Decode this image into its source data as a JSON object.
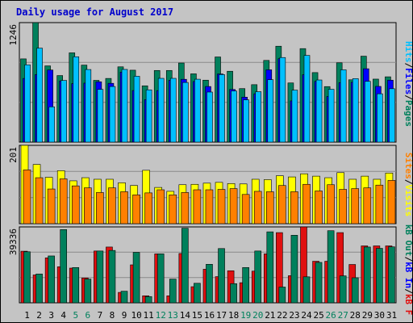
{
  "chart_data": [
    {
      "type": "bar",
      "title": "Daily usage for August 2017",
      "panel": "pages-files-hits",
      "ymax_label": "1246",
      "right_labels": [
        "Pages",
        "Files",
        "Hits"
      ],
      "right_separator": "/",
      "colors": {
        "hits": "#00805c",
        "files": "#0000ff",
        "pages": "#00c0ff"
      },
      "categories": [
        "1",
        "2",
        "3",
        "4",
        "5",
        "6",
        "7",
        "8",
        "9",
        "10",
        "11",
        "12",
        "13",
        "14",
        "15",
        "16",
        "17",
        "18",
        "19",
        "20",
        "21",
        "22",
        "23",
        "24",
        "25",
        "26",
        "27",
        "28",
        "29",
        "30",
        "31"
      ],
      "series": [
        {
          "name": "Hits",
          "key": "hits",
          "values": [
            868,
            1246,
            795,
            694,
            931,
            803,
            644,
            664,
            785,
            750,
            587,
            747,
            747,
            825,
            712,
            646,
            888,
            739,
            558,
            599,
            852,
            1000,
            617,
            975,
            725,
            579,
            827,
            650,
            896,
            657,
            681
          ]
        },
        {
          "name": "Files",
          "key": "files",
          "values": [
            664,
            705,
            752,
            638,
            610,
            615,
            629,
            613,
            730,
            538,
            443,
            537,
            645,
            655,
            632,
            580,
            711,
            549,
            469,
            504,
            754,
            870,
            430,
            703,
            633,
            476,
            620,
            624,
            765,
            581,
            646
          ]
        },
        {
          "name": "Pages",
          "key": "pages",
          "values": [
            806,
            980,
            368,
            643,
            890,
            757,
            550,
            580,
            758,
            687,
            545,
            665,
            665,
            622,
            656,
            522,
            704,
            533,
            441,
            526,
            651,
            882,
            542,
            904,
            648,
            551,
            754,
            662,
            634,
            504,
            557
          ]
        }
      ]
    },
    {
      "type": "bar",
      "panel": "visits-sites",
      "ymax_label": "201",
      "right_labels": [
        "Visits",
        "Sites"
      ],
      "right_separator": "/",
      "colors": {
        "visits": "#ffff00",
        "sites": "#ff8000"
      },
      "categories": [
        "1",
        "2",
        "3",
        "4",
        "5",
        "6",
        "7",
        "8",
        "9",
        "10",
        "11",
        "12",
        "13",
        "14",
        "15",
        "16",
        "17",
        "18",
        "19",
        "20",
        "21",
        "22",
        "23",
        "24",
        "25",
        "26",
        "27",
        "28",
        "29",
        "30",
        "31"
      ],
      "series": [
        {
          "name": "Visits",
          "key": "visits",
          "values": [
            201,
            152,
            119,
            136,
            110,
            118,
            114,
            114,
            105,
            98,
            137,
            93,
            83,
            100,
            101,
            104,
            106,
            103,
            102,
            114,
            113,
            123,
            120,
            128,
            122,
            118,
            131,
            114,
            122,
            114,
            130
          ]
        },
        {
          "name": "Sites",
          "key": "sites",
          "values": [
            138,
            118,
            89,
            115,
            97,
            92,
            80,
            92,
            82,
            74,
            79,
            87,
            74,
            80,
            87,
            87,
            88,
            90,
            75,
            83,
            82,
            98,
            82,
            101,
            84,
            100,
            88,
            90,
            92,
            99,
            111
          ]
        }
      ]
    },
    {
      "type": "bar",
      "panel": "kb",
      "ymax_label": "39336",
      "right_labels": [
        "kB F",
        "kB In",
        "kB Out"
      ],
      "right_separator": "/",
      "colors": {
        "kbf": "#e01010",
        "kbout": "#00805c"
      },
      "categories": [
        "1",
        "2",
        "3",
        "4",
        "5",
        "6",
        "7",
        "8",
        "9",
        "10",
        "11",
        "12",
        "13",
        "14",
        "15",
        "16",
        "17",
        "18",
        "19",
        "20",
        "21",
        "22",
        "23",
        "24",
        "25",
        "26",
        "27",
        "28",
        "29",
        "30",
        "31"
      ],
      "series": [
        {
          "name": "kB F",
          "key": "kbf",
          "values": [
            27200,
            14700,
            23700,
            19000,
            18300,
            13100,
            27300,
            29400,
            5500,
            20000,
            3700,
            25800,
            3700,
            26000,
            8500,
            17700,
            13800,
            16900,
            10600,
            16700,
            25800,
            37000,
            14300,
            40000,
            21900,
            21900,
            37000,
            20200,
            30000,
            30000,
            30000
          ]
        },
        {
          "name": "kB Out",
          "key": "kbout",
          "values": [
            26900,
            15200,
            24700,
            38600,
            18600,
            12500,
            27300,
            27600,
            6100,
            26600,
            3300,
            25800,
            12500,
            39300,
            10300,
            20300,
            28600,
            10100,
            18600,
            27300,
            37400,
            8300,
            35600,
            13700,
            21300,
            38000,
            14200,
            13200,
            29400,
            28700,
            29500
          ]
        }
      ]
    }
  ],
  "x_axis": {
    "labels": [
      "1",
      "2",
      "3",
      "4",
      "5",
      "6",
      "7",
      "8",
      "9",
      "10",
      "11",
      "12",
      "13",
      "14",
      "15",
      "16",
      "17",
      "18",
      "19",
      "20",
      "21",
      "22",
      "23",
      "24",
      "25",
      "26",
      "27",
      "28",
      "29",
      "30",
      "31"
    ],
    "weekend_days": [
      "5",
      "6",
      "12",
      "13",
      "19",
      "20",
      "26",
      "27"
    ],
    "weekday_color": "#000000",
    "weekend_color": "#00805c"
  }
}
